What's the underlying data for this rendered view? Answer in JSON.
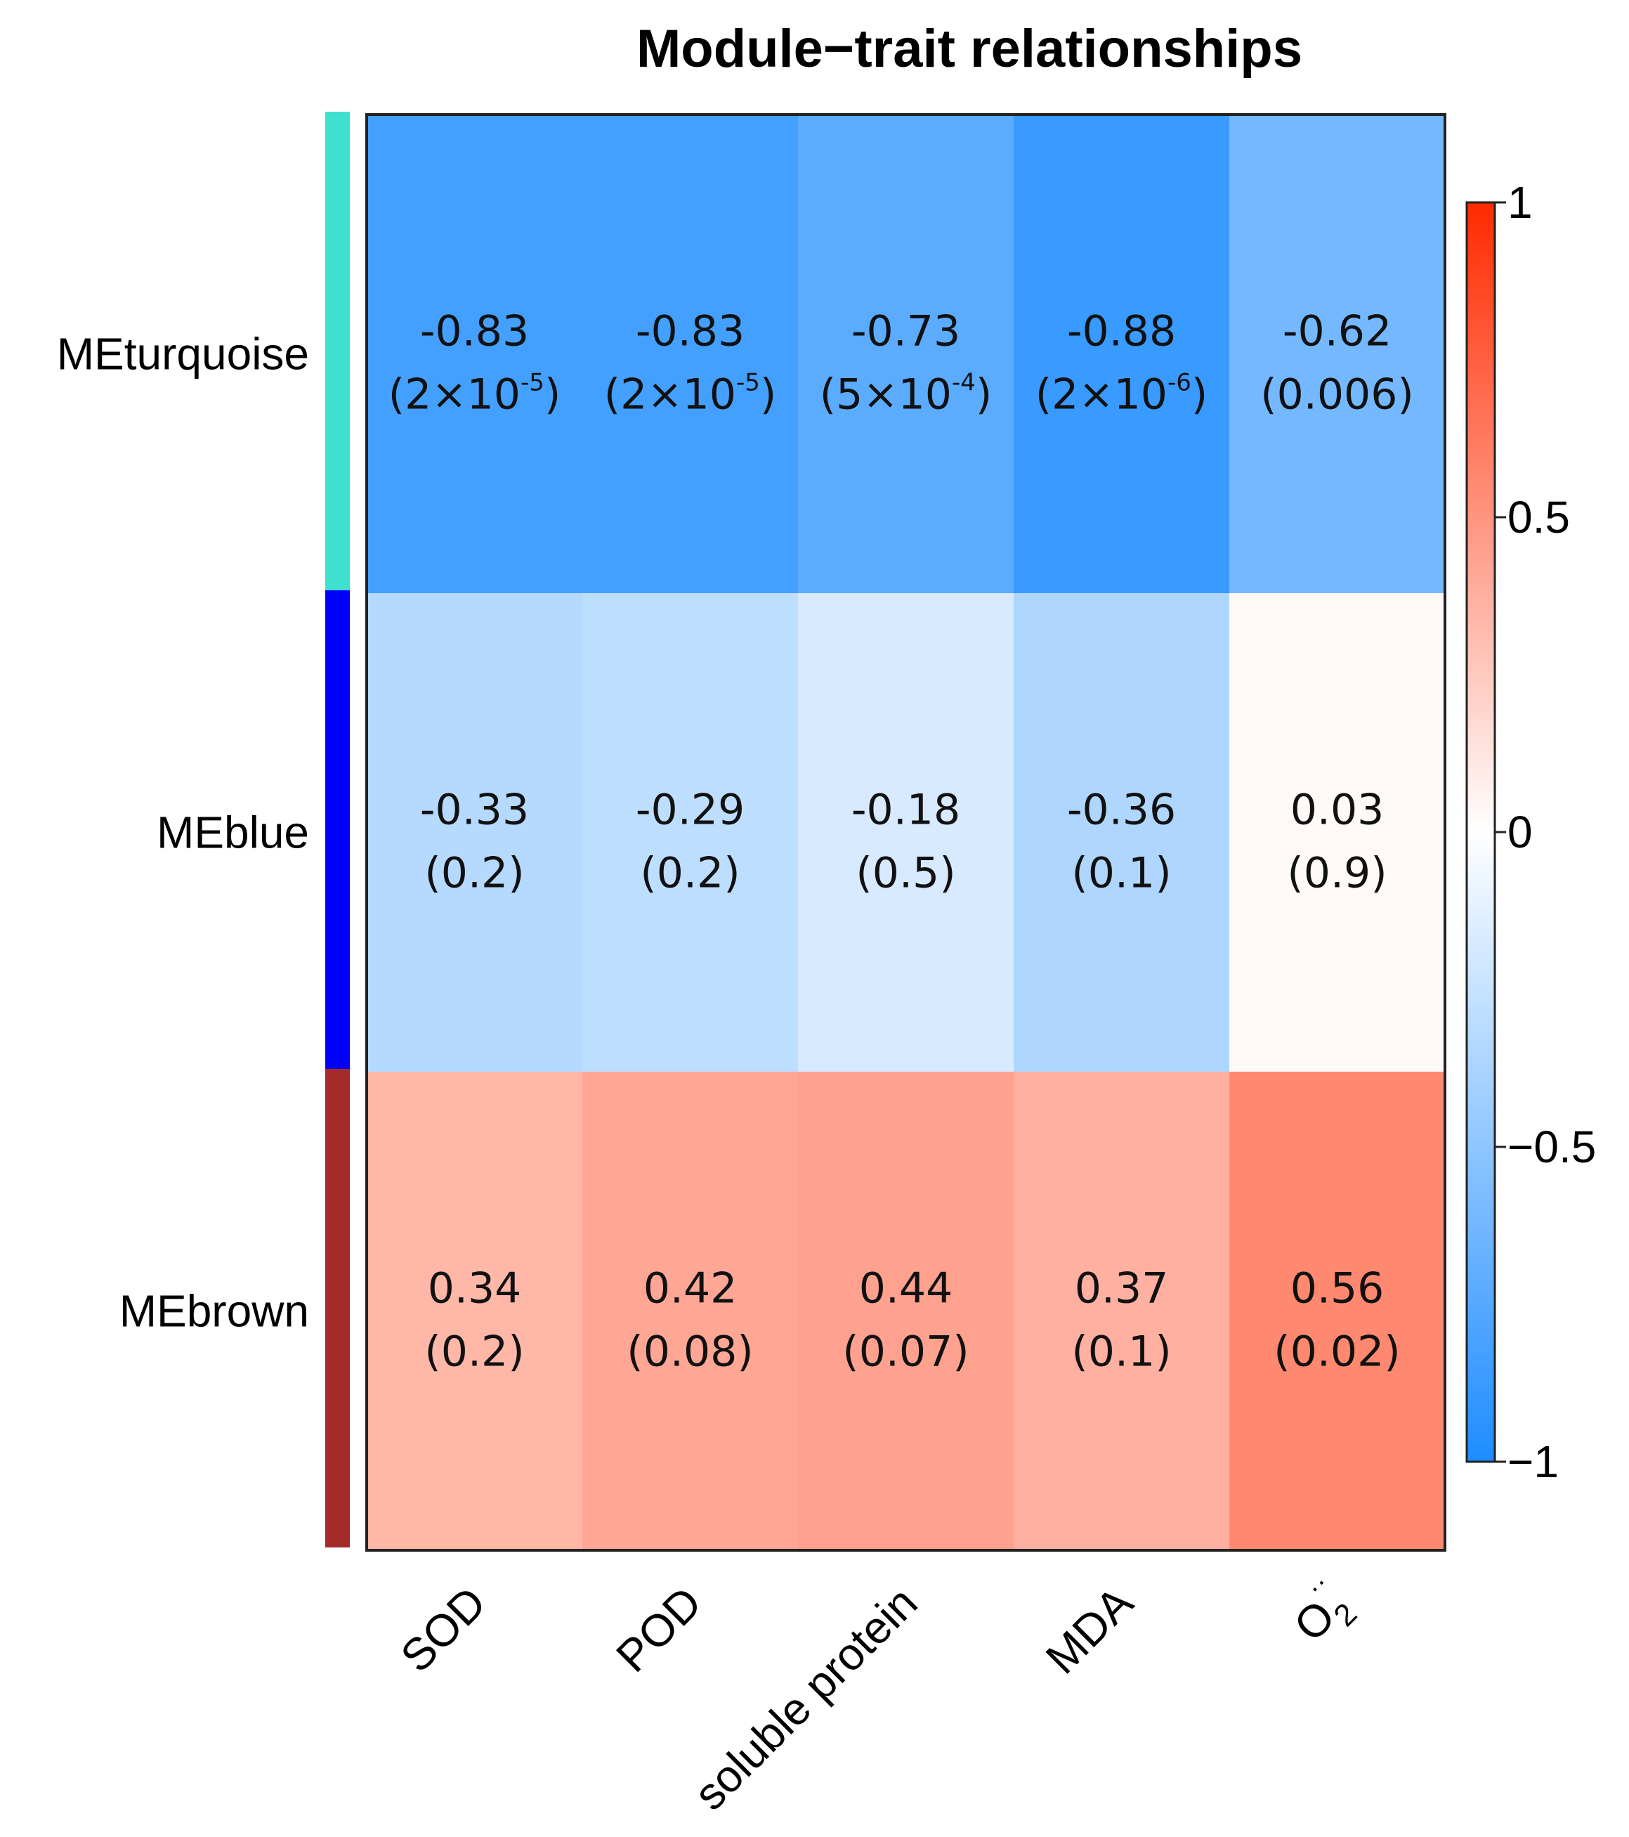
{
  "chart_data": {
    "type": "heatmap",
    "title": "Module−trait relationships",
    "rows": [
      {
        "name": "MEturquoise",
        "color": "#40E0D0"
      },
      {
        "name": "MEblue",
        "color": "#0000FF"
      },
      {
        "name": "MEbrown",
        "color": "#A52A2A"
      }
    ],
    "columns": [
      {
        "label": "SOD"
      },
      {
        "label": "POD"
      },
      {
        "label": "soluble protein"
      },
      {
        "label": "MDA"
      },
      {
        "label": "O",
        "subscript": "2",
        "superscript": "··"
      }
    ],
    "values": [
      [
        -0.83,
        -0.83,
        -0.73,
        -0.88,
        -0.62
      ],
      [
        -0.33,
        -0.29,
        -0.18,
        -0.36,
        0.03
      ],
      [
        0.34,
        0.42,
        0.44,
        0.37,
        0.56
      ]
    ],
    "p_values": [
      [
        {
          "base": "(2×10",
          "exp": "-5",
          "close": ")"
        },
        {
          "base": "(2×10",
          "exp": "-5",
          "close": ")"
        },
        {
          "base": "(5×10",
          "exp": "-4",
          "close": ")"
        },
        {
          "base": "(2×10",
          "exp": "-6",
          "close": ")"
        },
        {
          "base": "(0.006)"
        }
      ],
      [
        {
          "base": "(0.2)"
        },
        {
          "base": "(0.2)"
        },
        {
          "base": "(0.5)"
        },
        {
          "base": "(0.1)"
        },
        {
          "base": "(0.9)"
        }
      ],
      [
        {
          "base": "(0.2)"
        },
        {
          "base": "(0.08)"
        },
        {
          "base": "(0.07)"
        },
        {
          "base": "(0.1)"
        },
        {
          "base": "(0.02)"
        }
      ]
    ],
    "value_labels": [
      [
        "-0.83",
        "-0.83",
        "-0.73",
        "-0.88",
        "-0.62"
      ],
      [
        "-0.33",
        "-0.29",
        "-0.18",
        "-0.36",
        "0.03"
      ],
      [
        "0.34",
        "0.42",
        "0.44",
        "0.37",
        "0.56"
      ]
    ],
    "colorbar": {
      "range": [
        -1,
        1
      ],
      "ticks": [
        1,
        0.5,
        0,
        -0.5,
        -1
      ],
      "tick_labels": [
        "1",
        "0.5",
        "0",
        "−0.5",
        "−1"
      ],
      "colors": {
        "low": "#1E8CFF",
        "mid": "#FFFFFF",
        "high": "#FF2A00"
      }
    }
  }
}
